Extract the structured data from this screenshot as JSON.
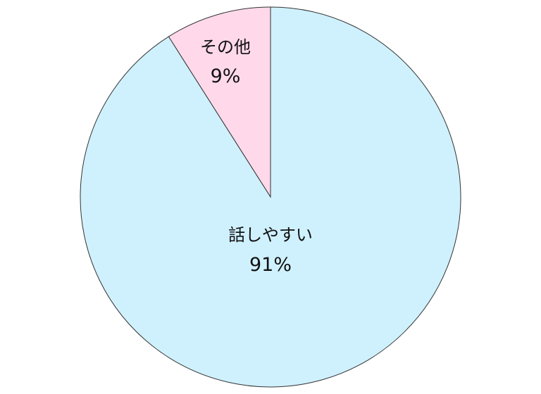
{
  "chart_data": {
    "type": "pie",
    "title": "",
    "slices": [
      {
        "label": "その他",
        "value": 9,
        "value_label": "9%",
        "color": "#ffd9ea"
      },
      {
        "label": "話しやすい",
        "value": 91,
        "value_label": "91%",
        "color": "#cff1fe"
      }
    ],
    "start": "top",
    "direction": "counterclockwise-from-top for first slice",
    "legend": "none"
  }
}
